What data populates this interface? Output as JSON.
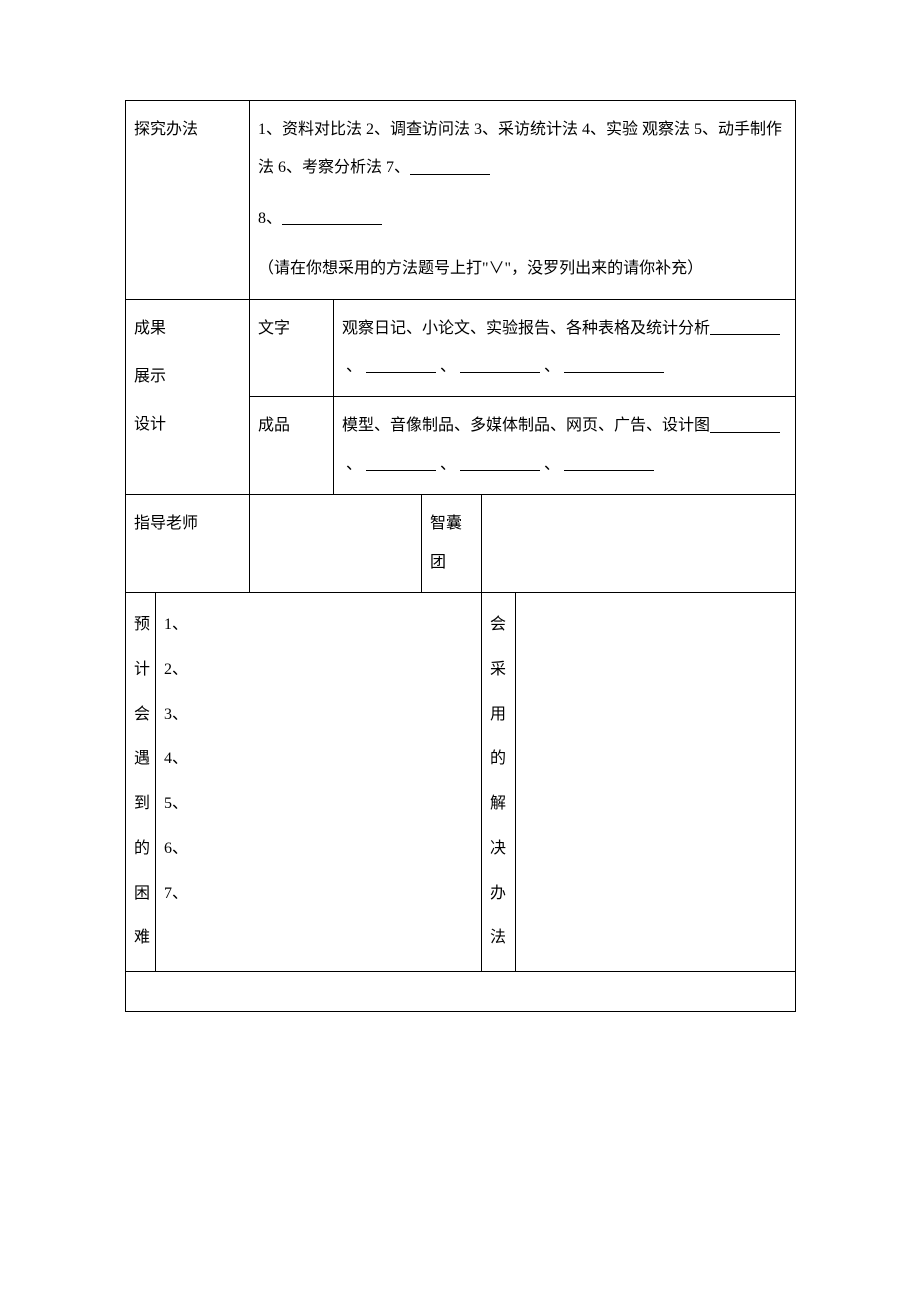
{
  "rows": {
    "methods": {
      "label": "探究办法",
      "line1a": "1、资料对比法 2、调查访问法  3、采访统计法  4、实验",
      "line1b": "观察法 5、动手制作法 6、考察分析法  7、",
      "line2": "8、",
      "line3": "（请在你想采用的方法题号上打\"∨\"，没罗列出来的请你补充）"
    },
    "display": {
      "label1": "成果",
      "label2": "展示",
      "label3": "设计",
      "text_label": "文字",
      "text_content": "观察日记、小论文、实验报告、各种表格及统计分析",
      "product_label": "成品",
      "product_content": "模型、音像制品、多媒体制品、网页、广告、设计图"
    },
    "advisor": {
      "label": "指导老师",
      "team_label": "智囊团"
    },
    "difficulties": {
      "label": "预计会遇到的困难",
      "items": [
        "1、",
        "2、",
        "3、",
        "4、",
        "5、",
        "6、",
        "7、"
      ],
      "solution_label": "会采用的解决办法"
    }
  },
  "style": {
    "blank_widths": {
      "method7": 80,
      "method8": 100,
      "text_fill": 70,
      "prod_fill": 70
    }
  }
}
